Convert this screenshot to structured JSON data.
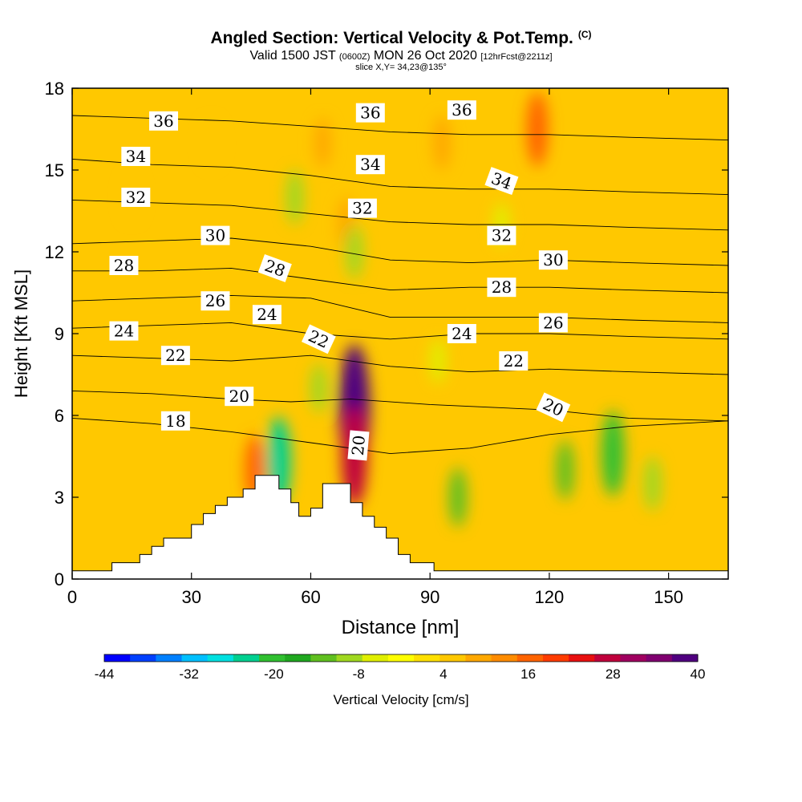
{
  "header": {
    "title": "Angled Section: Vertical Velocity & Pot.Temp.",
    "copyright": "(C)",
    "valid_prefix": "Valid 1500 JST",
    "valid_utc": "(0600Z)",
    "valid_date": "MON 26 Oct 2020",
    "forecast": "[12hrFcst@2211z]",
    "slice": "slice X,Y= 34,23@135°"
  },
  "colorbar": {
    "label": "Vertical Velocity [cm/s]",
    "tick_labels": [
      "-44",
      "-32",
      "-20",
      "-8",
      "4",
      "16",
      "28",
      "40"
    ],
    "min": -44,
    "max": 40,
    "colors": [
      "#0000ff",
      "#0040ff",
      "#0080ff",
      "#00c0ff",
      "#00e0e0",
      "#00d090",
      "#30c030",
      "#20a820",
      "#60c020",
      "#a0d820",
      "#e0ef00",
      "#ffff00",
      "#ffe000",
      "#ffc800",
      "#ffa800",
      "#ff8c00",
      "#ff6400",
      "#ff3c00",
      "#e81010",
      "#c0003c",
      "#a00060",
      "#800070",
      "#500080"
    ]
  },
  "chart_data": {
    "type": "heatmap",
    "title": "Angled Section: Vertical Velocity & Pot.Temp.",
    "xlabel": "Distance [nm]",
    "ylabel": "Height [Kft MSL]",
    "xlim": [
      0,
      165
    ],
    "ylim": [
      0,
      18
    ],
    "x_ticks": [
      0,
      30,
      60,
      90,
      120,
      150
    ],
    "y_ticks": [
      0,
      3,
      6,
      9,
      12,
      15,
      18
    ],
    "terrain": [
      [
        0,
        0.3
      ],
      [
        10,
        0.3
      ],
      [
        10,
        0.6
      ],
      [
        17,
        0.6
      ],
      [
        17,
        0.9
      ],
      [
        20,
        0.9
      ],
      [
        20,
        1.2
      ],
      [
        23,
        1.2
      ],
      [
        23,
        1.5
      ],
      [
        30,
        1.5
      ],
      [
        30,
        2.0
      ],
      [
        33,
        2.0
      ],
      [
        33,
        2.4
      ],
      [
        36,
        2.4
      ],
      [
        36,
        2.7
      ],
      [
        39,
        2.7
      ],
      [
        39,
        3.0
      ],
      [
        43,
        3.0
      ],
      [
        43,
        3.3
      ],
      [
        46,
        3.3
      ],
      [
        46,
        3.8
      ],
      [
        52,
        3.8
      ],
      [
        52,
        3.3
      ],
      [
        55,
        3.3
      ],
      [
        55,
        2.8
      ],
      [
        57,
        2.8
      ],
      [
        57,
        2.3
      ],
      [
        60,
        2.3
      ],
      [
        60,
        2.6
      ],
      [
        63,
        2.6
      ],
      [
        63,
        3.5
      ],
      [
        70,
        3.5
      ],
      [
        70,
        2.8
      ],
      [
        73,
        2.8
      ],
      [
        73,
        2.3
      ],
      [
        76,
        2.3
      ],
      [
        76,
        1.9
      ],
      [
        79,
        1.9
      ],
      [
        79,
        1.5
      ],
      [
        82,
        1.5
      ],
      [
        82,
        0.9
      ],
      [
        85,
        0.9
      ],
      [
        85,
        0.6
      ],
      [
        91,
        0.6
      ],
      [
        91,
        0.3
      ],
      [
        165,
        0.3
      ]
    ],
    "velocity_features": [
      {
        "x": 71,
        "y": 6.2,
        "value": 40
      },
      {
        "x": 71,
        "y": 4.5,
        "value": 28
      },
      {
        "x": 52,
        "y": 4.3,
        "value": -24
      },
      {
        "x": 136,
        "y": 4.6,
        "value": -22
      },
      {
        "x": 117,
        "y": 16.5,
        "value": 18
      },
      {
        "x": 46,
        "y": 4.0,
        "value": 16
      },
      {
        "x": 93,
        "y": 16.0,
        "value": 10
      },
      {
        "x": 69,
        "y": 13.0,
        "value": 10
      },
      {
        "x": 63,
        "y": 16.0,
        "value": 8
      },
      {
        "x": 35,
        "y": 16.0,
        "value": 6
      },
      {
        "x": 56,
        "y": 14.0,
        "value": -10
      },
      {
        "x": 71,
        "y": 12.0,
        "value": -10
      },
      {
        "x": 97,
        "y": 3.0,
        "value": -12
      },
      {
        "x": 124,
        "y": 4.0,
        "value": -12
      },
      {
        "x": 146,
        "y": 3.5,
        "value": -10
      },
      {
        "x": 108,
        "y": 13.0,
        "value": -6
      },
      {
        "x": 92,
        "y": 8.0,
        "value": -6
      },
      {
        "x": 62,
        "y": 7.0,
        "value": -8
      },
      {
        "x": 15,
        "y": 14.0,
        "value": 6
      }
    ],
    "theta_contours": [
      {
        "label": "18",
        "x": [
          0,
          20,
          40,
          60,
          80,
          100,
          120,
          140,
          165
        ],
        "y": [
          5.9,
          5.7,
          5.4,
          5.0,
          4.6,
          4.8,
          5.3,
          5.6,
          5.8
        ]
      },
      {
        "label": "20",
        "x": [
          0,
          20,
          40,
          55,
          70,
          90,
          120,
          140,
          165
        ],
        "y": [
          6.9,
          6.8,
          6.6,
          6.5,
          6.6,
          6.4,
          6.2,
          5.9,
          5.8
        ]
      },
      {
        "label": "22",
        "x": [
          0,
          20,
          40,
          60,
          80,
          100,
          120,
          140,
          165
        ],
        "y": [
          8.2,
          8.1,
          8.0,
          8.2,
          7.8,
          7.6,
          7.7,
          7.6,
          7.5
        ]
      },
      {
        "label": "24",
        "x": [
          0,
          20,
          40,
          60,
          80,
          100,
          120,
          140,
          165
        ],
        "y": [
          9.2,
          9.3,
          9.4,
          9.0,
          8.8,
          9.0,
          9.0,
          8.9,
          8.8
        ]
      },
      {
        "label": "26",
        "x": [
          0,
          20,
          40,
          60,
          80,
          100,
          120,
          140,
          165
        ],
        "y": [
          10.2,
          10.3,
          10.4,
          10.3,
          9.6,
          9.6,
          9.6,
          9.5,
          9.4
        ]
      },
      {
        "label": "28",
        "x": [
          0,
          20,
          40,
          60,
          80,
          100,
          120,
          140,
          165
        ],
        "y": [
          11.3,
          11.3,
          11.4,
          11.0,
          10.6,
          10.7,
          10.7,
          10.6,
          10.5
        ]
      },
      {
        "label": "30",
        "x": [
          0,
          20,
          40,
          60,
          80,
          100,
          120,
          140,
          165
        ],
        "y": [
          12.3,
          12.4,
          12.5,
          12.2,
          11.7,
          11.6,
          11.7,
          11.6,
          11.5
        ]
      },
      {
        "label": "32",
        "x": [
          0,
          20,
          40,
          60,
          80,
          100,
          120,
          140,
          165
        ],
        "y": [
          13.9,
          13.8,
          13.7,
          13.4,
          13.1,
          13.0,
          13.0,
          12.9,
          12.8
        ]
      },
      {
        "label": "34",
        "x": [
          0,
          20,
          40,
          60,
          80,
          100,
          120,
          140,
          165
        ],
        "y": [
          15.4,
          15.2,
          15.1,
          14.8,
          14.4,
          14.3,
          14.3,
          14.2,
          14.1
        ]
      },
      {
        "label": "36",
        "x": [
          0,
          20,
          40,
          60,
          80,
          100,
          120,
          140,
          165
        ],
        "y": [
          17.0,
          16.9,
          16.8,
          16.6,
          16.4,
          16.3,
          16.3,
          16.2,
          16.1
        ]
      }
    ],
    "contour_labels": [
      {
        "text": "18",
        "x": 26,
        "y": 5.8,
        "angle": 0
      },
      {
        "text": "20",
        "x": 42,
        "y": 6.7,
        "angle": 0
      },
      {
        "text": "22",
        "x": 26,
        "y": 8.2,
        "angle": 0
      },
      {
        "text": "24",
        "x": 13,
        "y": 9.1,
        "angle": 0
      },
      {
        "text": "26",
        "x": 36,
        "y": 10.2,
        "angle": 0
      },
      {
        "text": "28",
        "x": 13,
        "y": 11.5,
        "angle": 0
      },
      {
        "text": "30",
        "x": 36,
        "y": 12.6,
        "angle": 0
      },
      {
        "text": "32",
        "x": 16,
        "y": 14.0,
        "angle": 0
      },
      {
        "text": "34",
        "x": 16,
        "y": 15.5,
        "angle": 0
      },
      {
        "text": "36",
        "x": 23,
        "y": 16.8,
        "angle": 0
      },
      {
        "text": "24",
        "x": 49,
        "y": 9.7,
        "angle": 0
      },
      {
        "text": "28",
        "x": 51,
        "y": 11.4,
        "angle": 20
      },
      {
        "text": "22",
        "x": 62,
        "y": 8.8,
        "angle": 25
      },
      {
        "text": "20",
        "x": 72,
        "y": 4.9,
        "angle": -85
      },
      {
        "text": "32",
        "x": 73,
        "y": 13.6,
        "angle": 0
      },
      {
        "text": "34",
        "x": 75,
        "y": 15.2,
        "angle": 0
      },
      {
        "text": "36",
        "x": 75,
        "y": 17.1,
        "angle": 0
      },
      {
        "text": "36",
        "x": 98,
        "y": 17.2,
        "angle": 0
      },
      {
        "text": "24",
        "x": 98,
        "y": 9.0,
        "angle": 0
      },
      {
        "text": "34",
        "x": 108,
        "y": 14.6,
        "angle": 20
      },
      {
        "text": "32",
        "x": 108,
        "y": 12.6,
        "angle": 0
      },
      {
        "text": "28",
        "x": 108,
        "y": 10.7,
        "angle": 0
      },
      {
        "text": "22",
        "x": 111,
        "y": 8.0,
        "angle": 0
      },
      {
        "text": "30",
        "x": 121,
        "y": 11.7,
        "angle": 0
      },
      {
        "text": "26",
        "x": 121,
        "y": 9.4,
        "angle": 0
      },
      {
        "text": "20",
        "x": 121,
        "y": 6.3,
        "angle": 25
      }
    ]
  }
}
